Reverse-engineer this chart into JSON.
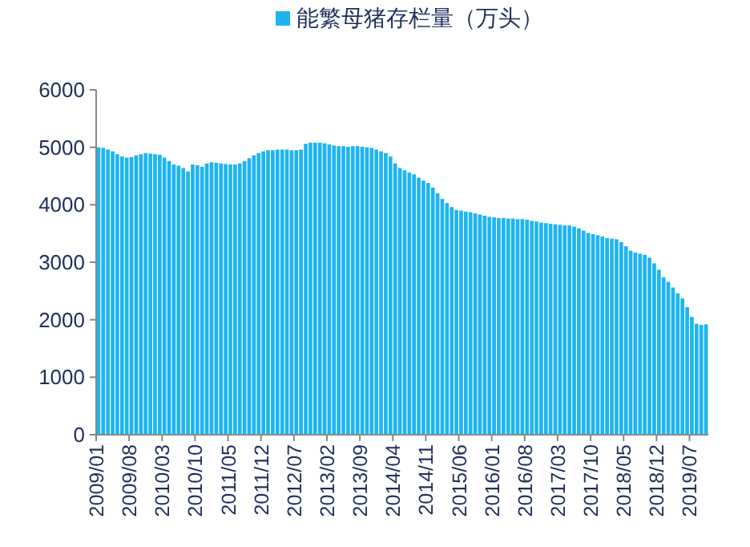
{
  "chart_data": {
    "type": "bar",
    "categories": [
      "2009/01",
      null,
      null,
      null,
      null,
      null,
      null,
      "2009/08",
      null,
      null,
      null,
      null,
      null,
      null,
      "2010/03",
      null,
      null,
      null,
      null,
      null,
      null,
      "2010/10",
      null,
      null,
      null,
      null,
      null,
      null,
      "2011/05",
      null,
      null,
      null,
      null,
      null,
      null,
      "2011/12",
      null,
      null,
      null,
      null,
      null,
      null,
      "2012/07",
      null,
      null,
      null,
      null,
      null,
      null,
      "2013/02",
      null,
      null,
      null,
      null,
      null,
      null,
      "2013/09",
      null,
      null,
      null,
      null,
      null,
      null,
      "2014/04",
      null,
      null,
      null,
      null,
      null,
      null,
      "2014/11",
      null,
      null,
      null,
      null,
      null,
      null,
      "2015/06",
      null,
      null,
      null,
      null,
      null,
      null,
      "2016/01",
      null,
      null,
      null,
      null,
      null,
      null,
      "2016/08",
      null,
      null,
      null,
      null,
      null,
      null,
      "2017/03",
      null,
      null,
      null,
      null,
      null,
      null,
      "2017/10",
      null,
      null,
      null,
      null,
      null,
      null,
      "2018/05",
      null,
      null,
      null,
      null,
      null,
      null,
      "2018/12",
      null,
      null,
      null,
      null,
      null,
      null,
      "2019/07",
      null,
      null,
      null
    ],
    "series": [
      {
        "name": "能繁母猪存栏量（万头）",
        "color": "#1fb4ee",
        "values": [
          5000,
          4990,
          4960,
          4930,
          4880,
          4840,
          4820,
          4830,
          4860,
          4880,
          4900,
          4890,
          4880,
          4870,
          4820,
          4760,
          4700,
          4680,
          4640,
          4580,
          4700,
          4690,
          4660,
          4720,
          4740,
          4730,
          4720,
          4710,
          4700,
          4700,
          4720,
          4760,
          4810,
          4860,
          4900,
          4930,
          4950,
          4950,
          4960,
          4960,
          4960,
          4950,
          4950,
          4960,
          5060,
          5080,
          5080,
          5080,
          5070,
          5050,
          5030,
          5020,
          5020,
          5010,
          5020,
          5020,
          5010,
          5000,
          4990,
          4960,
          4930,
          4900,
          4840,
          4720,
          4640,
          4600,
          4560,
          4530,
          4470,
          4420,
          4380,
          4300,
          4200,
          4100,
          4030,
          3960,
          3910,
          3900,
          3880,
          3870,
          3850,
          3830,
          3810,
          3790,
          3780,
          3770,
          3770,
          3760,
          3760,
          3750,
          3750,
          3740,
          3720,
          3710,
          3690,
          3680,
          3670,
          3660,
          3650,
          3640,
          3640,
          3620,
          3590,
          3550,
          3510,
          3490,
          3470,
          3450,
          3420,
          3410,
          3400,
          3350,
          3280,
          3200,
          3170,
          3150,
          3130,
          3080,
          2980,
          2870,
          2740,
          2660,
          2560,
          2460,
          2370,
          2220,
          2050,
          1930,
          1910,
          1920
        ]
      }
    ],
    "ylim": [
      0,
      6000
    ],
    "yticks": [
      0,
      1000,
      2000,
      3000,
      4000,
      5000,
      6000
    ],
    "grid": false,
    "legend": "top"
  }
}
